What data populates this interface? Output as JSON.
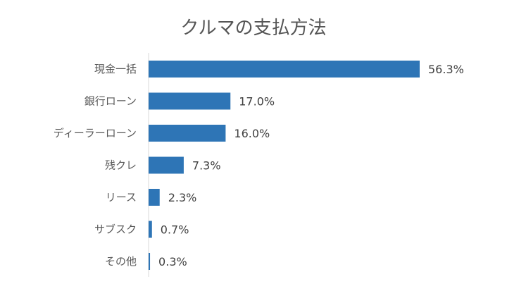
{
  "chart_data": {
    "type": "bar",
    "orientation": "horizontal",
    "title": "クルマの支払方法",
    "categories": [
      "現金一括",
      "銀行ローン",
      "ディーラーローン",
      "残クレ",
      "リース",
      "サブスク",
      "その他"
    ],
    "values": [
      56.3,
      17.0,
      16.0,
      7.3,
      2.3,
      0.7,
      0.3
    ],
    "value_labels": [
      "56.3%",
      "17.0%",
      "16.0%",
      "7.3%",
      "2.3%",
      "0.7%",
      "0.3%"
    ],
    "xlim": [
      0,
      60
    ],
    "grid": false,
    "legend": "none",
    "colors": {
      "bar": "#2E75B6",
      "axis": "#D9D9D9"
    }
  }
}
